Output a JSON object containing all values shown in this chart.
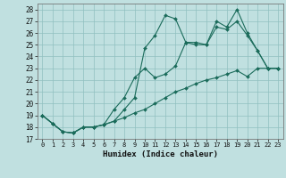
{
  "xlabel": "Humidex (Indice chaleur)",
  "bg_color": "#c0e0e0",
  "grid_color": "#90c0c0",
  "line_color": "#1a6b5a",
  "xlim": [
    -0.5,
    23.5
  ],
  "ylim": [
    17,
    28.5
  ],
  "yticks": [
    17,
    18,
    19,
    20,
    21,
    22,
    23,
    24,
    25,
    26,
    27,
    28
  ],
  "xticks": [
    0,
    1,
    2,
    3,
    4,
    5,
    6,
    7,
    8,
    9,
    10,
    11,
    12,
    13,
    14,
    15,
    16,
    17,
    18,
    19,
    20,
    21,
    22,
    23
  ],
  "series1_x": [
    0,
    1,
    2,
    3,
    4,
    5,
    6,
    7,
    8,
    9,
    10,
    11,
    12,
    13,
    14,
    15,
    16,
    17,
    18,
    19,
    20,
    21,
    22,
    23
  ],
  "series1_y": [
    19.0,
    18.3,
    17.6,
    17.5,
    18.0,
    18.0,
    18.2,
    18.5,
    18.8,
    19.2,
    19.5,
    20.0,
    20.5,
    21.0,
    21.3,
    21.7,
    22.0,
    22.2,
    22.5,
    22.8,
    22.3,
    23.0,
    23.0,
    23.0
  ],
  "series2_x": [
    0,
    1,
    2,
    3,
    4,
    5,
    6,
    7,
    8,
    9,
    10,
    11,
    12,
    13,
    14,
    15,
    16,
    17,
    18,
    19,
    20,
    21,
    22,
    23
  ],
  "series2_y": [
    19.0,
    18.3,
    17.6,
    17.5,
    18.0,
    18.0,
    18.2,
    18.5,
    19.5,
    20.5,
    24.7,
    25.8,
    27.5,
    27.2,
    25.2,
    25.0,
    25.0,
    26.5,
    26.3,
    27.0,
    25.8,
    24.5,
    23.0,
    23.0
  ],
  "series3_x": [
    0,
    1,
    2,
    3,
    4,
    5,
    6,
    7,
    8,
    9,
    10,
    11,
    12,
    13,
    14,
    15,
    16,
    17,
    18,
    19,
    20,
    21,
    22,
    23
  ],
  "series3_y": [
    19.0,
    18.3,
    17.6,
    17.5,
    18.0,
    18.0,
    18.2,
    19.5,
    20.5,
    22.2,
    23.0,
    22.2,
    22.5,
    23.2,
    25.2,
    25.2,
    25.0,
    27.0,
    26.5,
    28.0,
    26.0,
    24.5,
    23.0,
    23.0
  ]
}
